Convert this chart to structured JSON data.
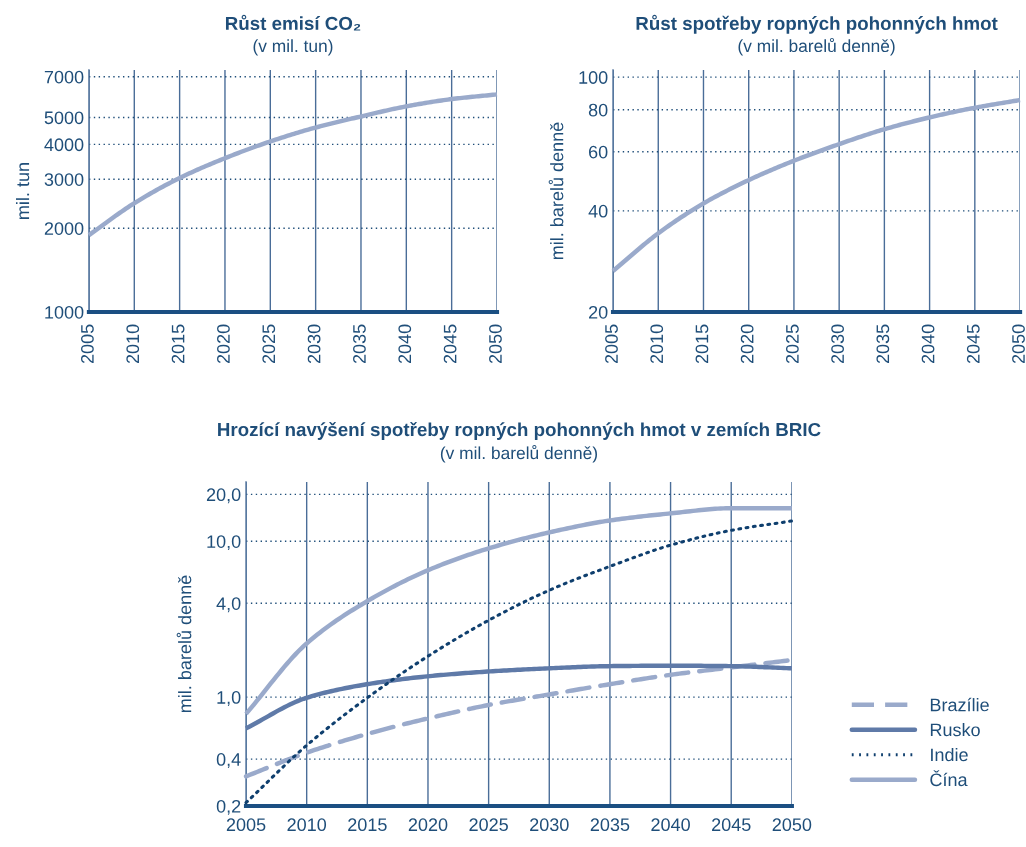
{
  "chart_data": [
    {
      "type": "line",
      "title": "Růst emisí CO₂",
      "subtitle": "(v mil. tun)",
      "ylabel": "mil. tun",
      "log": "y",
      "grid": true,
      "x": [
        2005,
        2010,
        2015,
        2020,
        2025,
        2030,
        2035,
        2040,
        2045,
        2050
      ],
      "series": [
        {
          "color": "#9aaacb",
          "line_style": "solid",
          "values": [
            1890,
            2460,
            3030,
            3570,
            4100,
            4600,
            5040,
            5480,
            5820,
            6050
          ]
        }
      ],
      "xlim": [
        2005,
        2050
      ],
      "xticks": [
        2005,
        2010,
        2015,
        2020,
        2025,
        2030,
        2035,
        2040,
        2045,
        2050
      ],
      "ylim": [
        1000,
        7400
      ],
      "yticks": [
        1000,
        2000,
        3000,
        4000,
        5000,
        7000
      ]
    },
    {
      "type": "line",
      "title": "Růst spotřeby ropných pohonných hmot",
      "subtitle": "(v mil. barelů denně)",
      "ylabel": "mil. barelů denně",
      "log": "y",
      "grid": true,
      "x": [
        2005,
        2010,
        2015,
        2020,
        2025,
        2030,
        2035,
        2040,
        2045,
        2050
      ],
      "series": [
        {
          "color": "#9aaacb",
          "line_style": "solid",
          "values": [
            26.5,
            34.3,
            42.1,
            49.4,
            56.4,
            63.2,
            70,
            75.9,
            81.1,
            85.5
          ]
        }
      ],
      "xlim": [
        2005,
        2050
      ],
      "xticks": [
        2005,
        2010,
        2015,
        2020,
        2025,
        2030,
        2035,
        2040,
        2045,
        2050
      ],
      "ylim": [
        20,
        105
      ],
      "yticks": [
        20,
        40,
        60,
        80,
        100
      ]
    },
    {
      "type": "line",
      "title": "Hrozící navýšení spotřeby ropných pohonných hmot v zemích BRIC",
      "subtitle": "(v mil. barelů denně)",
      "ylabel": "mil. barelů denně",
      "log": "y",
      "grid": true,
      "legend": "bottom right",
      "x": [
        2005,
        2010,
        2015,
        2020,
        2025,
        2030,
        2035,
        2040,
        2045,
        2050
      ],
      "series": [
        {
          "name": "Brazílie",
          "color": "#9aaacb",
          "line_style": "dashed",
          "values": [
            0.31,
            0.44,
            0.58,
            0.73,
            0.89,
            1.04,
            1.21,
            1.39,
            1.55,
            1.73
          ]
        },
        {
          "name": "Rusko",
          "color": "#5f7aa8",
          "line_style": "solid",
          "values": [
            0.63,
            0.99,
            1.21,
            1.36,
            1.46,
            1.53,
            1.58,
            1.59,
            1.58,
            1.53
          ]
        },
        {
          "name": "Indie",
          "color": "#0f3f6e",
          "line_style": "dotted",
          "values": [
            0.21,
            0.49,
            0.99,
            1.83,
            3.11,
            4.85,
            6.9,
            9.44,
            11.75,
            13.5
          ]
        },
        {
          "name": "Čína",
          "color": "#9aaacb",
          "line_style": "solid",
          "values": [
            0.78,
            2.21,
            4.13,
            6.52,
            9.0,
            11.4,
            13.6,
            15.1,
            16.3,
            16.3
          ]
        }
      ],
      "xlim": [
        2005,
        2050
      ],
      "xticks": [
        2005,
        2010,
        2015,
        2020,
        2025,
        2030,
        2035,
        2040,
        2045,
        2050
      ],
      "ylim": [
        0.2,
        24
      ],
      "yticks": [
        {
          "value": 0.2,
          "label": "0,2"
        },
        {
          "value": 0.4,
          "label": "0,4"
        },
        {
          "value": 1,
          "label": "1,0"
        },
        {
          "value": 4,
          "label": "4,0"
        },
        {
          "value": 10,
          "label": "10,0"
        },
        {
          "value": 20,
          "label": "20,0"
        }
      ]
    }
  ]
}
